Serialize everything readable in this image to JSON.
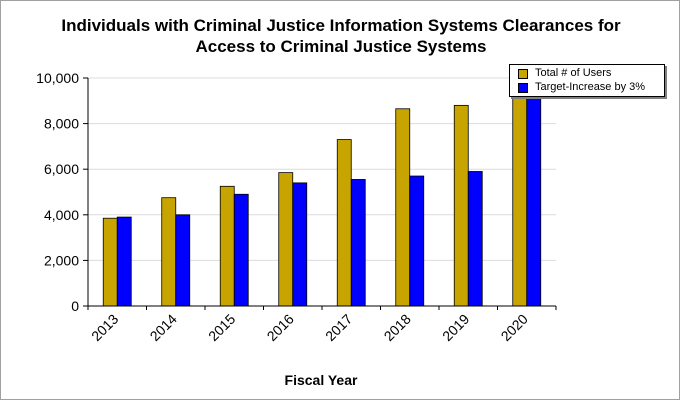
{
  "chart_data": {
    "type": "bar",
    "title_lines": [
      "Individuals with Criminal Justice Information Systems Clearances for",
      "Access to Criminal Justice Systems"
    ],
    "xlabel": "Fiscal Year",
    "ylabel": "",
    "categories": [
      "2013",
      "2014",
      "2015",
      "2016",
      "2017",
      "2018",
      "2019",
      "2020"
    ],
    "series": [
      {
        "name": "Total # of Users",
        "color": "#c8a400",
        "values": [
          3850,
          4750,
          5250,
          5850,
          7300,
          8650,
          8800,
          10000
        ]
      },
      {
        "name": "Target-Increase by 3%",
        "color": "#0000ff",
        "values": [
          3900,
          4000,
          4900,
          5400,
          5550,
          5700,
          5900,
          10000
        ]
      }
    ],
    "ylim": [
      0,
      10000
    ],
    "yticks": [
      0,
      2000,
      4000,
      6000,
      8000,
      10000
    ],
    "ytick_labels": [
      "0",
      "2,000",
      "4,000",
      "6,000",
      "8,000",
      "10,000"
    ],
    "grid": true,
    "legend_position": "top-right"
  }
}
